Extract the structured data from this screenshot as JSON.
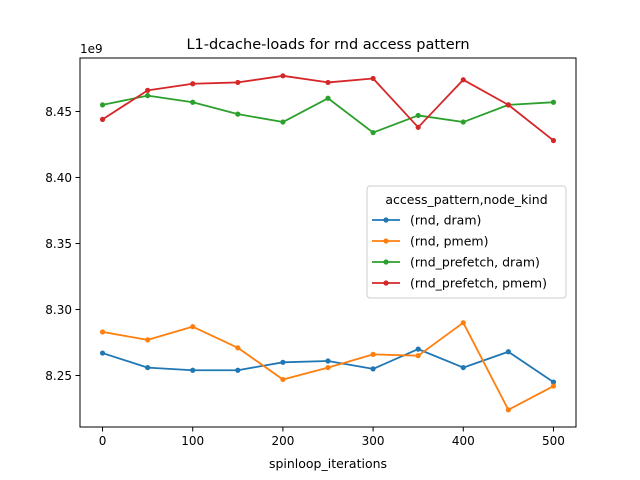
{
  "chart_data": {
    "type": "line",
    "title": "L1-dcache-loads for rnd access pattern",
    "xlabel": "spinloop_iterations",
    "ylabel": "",
    "y_offset_label": "1e9",
    "x": [
      0,
      50,
      100,
      150,
      200,
      250,
      300,
      350,
      400,
      450,
      500
    ],
    "xlim": [
      -25,
      525
    ],
    "ylim": [
      8.211,
      8.4905
    ],
    "x_ticks": [
      "0",
      "100",
      "200",
      "300",
      "400",
      "500"
    ],
    "x_tick_values": [
      0,
      100,
      200,
      300,
      400,
      500
    ],
    "y_ticks": [
      "8.25",
      "8.30",
      "8.35",
      "8.40",
      "8.45"
    ],
    "y_tick_values": [
      8.25,
      8.3,
      8.35,
      8.4,
      8.45
    ],
    "grid": false,
    "legend": {
      "title": "access_pattern,node_kind",
      "placement": "center-right"
    },
    "series": [
      {
        "name": "(rnd, dram)",
        "color": "#1f77b4",
        "values": [
          8.267,
          8.256,
          8.254,
          8.254,
          8.26,
          8.261,
          8.255,
          8.27,
          8.256,
          8.268,
          8.245
        ]
      },
      {
        "name": "(rnd, pmem)",
        "color": "#ff7f0e",
        "values": [
          8.283,
          8.277,
          8.287,
          8.271,
          8.247,
          8.256,
          8.266,
          8.265,
          8.29,
          8.224,
          8.242
        ]
      },
      {
        "name": "(rnd_prefetch, dram)",
        "color": "#2ca02c",
        "values": [
          8.455,
          8.462,
          8.457,
          8.448,
          8.442,
          8.46,
          8.434,
          8.447,
          8.442,
          8.455,
          8.457
        ]
      },
      {
        "name": "(rnd_prefetch, pmem)",
        "color": "#d62728",
        "values": [
          8.444,
          8.466,
          8.471,
          8.472,
          8.477,
          8.472,
          8.475,
          8.438,
          8.474,
          8.455,
          8.428
        ]
      }
    ]
  }
}
